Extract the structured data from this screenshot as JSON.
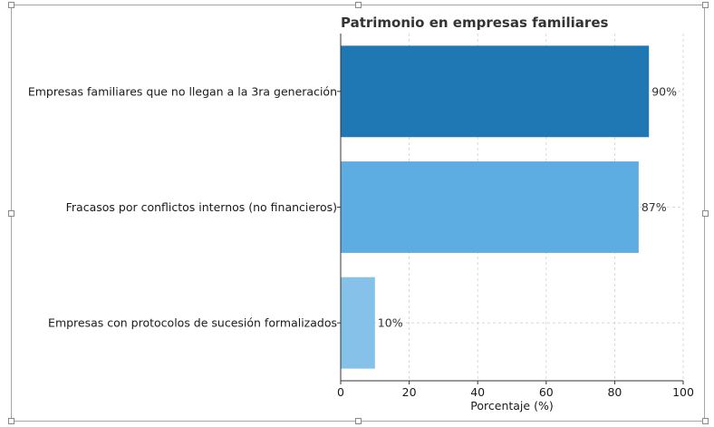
{
  "chart_data": {
    "type": "bar",
    "orientation": "horizontal",
    "title": "Patrimonio en empresas familiares",
    "xlabel": "Porcentaje (%)",
    "ylabel": "",
    "xlim": [
      0,
      100
    ],
    "xticks": [
      "0",
      "20",
      "40",
      "60",
      "80",
      "100"
    ],
    "grid": true,
    "categories": [
      "Empresas familiares que no llegan a la 3ra generación",
      "Fracasos por conflictos internos (no financieros)",
      "Empresas con protocolos de sucesión formalizados"
    ],
    "values": [
      90,
      87,
      10
    ],
    "value_labels": [
      "90%",
      "87%",
      "10%"
    ],
    "colors": [
      "#1f77b4",
      "#5dade2",
      "#85c1e9"
    ]
  }
}
